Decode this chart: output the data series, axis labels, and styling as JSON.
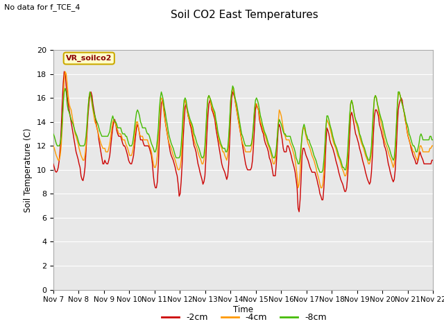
{
  "title": "Soil CO2 East Temperatures",
  "subtitle": "No data for f_TCE_4",
  "ylabel": "Soil Temperature (C)",
  "xlabel": "Time",
  "box_label": "VR_soilco2",
  "ylim": [
    0,
    20
  ],
  "legend_labels": [
    "-2cm",
    "-4cm",
    "-8cm"
  ],
  "legend_colors": [
    "#cc0000",
    "#ff9900",
    "#44bb00"
  ],
  "bg_color": "#ffffff",
  "plot_bg": "#e8e8e8",
  "x_tick_labels": [
    "Nov 7",
    "Nov 8",
    "Nov 9",
    "Nov 10",
    "Nov 11",
    "Nov 12",
    "Nov 13",
    "Nov 14",
    "Nov 15",
    "Nov 16",
    "Nov 17",
    "Nov 18",
    "Nov 19",
    "Nov 20",
    "Nov 21",
    "Nov 22"
  ],
  "yticks": [
    0,
    2,
    4,
    6,
    8,
    10,
    12,
    14,
    16,
    18,
    20
  ],
  "depth_2cm": [
    10.5,
    10.2,
    9.9,
    9.8,
    9.9,
    10.2,
    10.8,
    11.8,
    13.5,
    15.5,
    17.2,
    18.2,
    18.0,
    17.0,
    16.2,
    15.5,
    15.0,
    14.5,
    14.0,
    13.5,
    13.0,
    12.5,
    12.0,
    11.5,
    11.2,
    10.9,
    10.5,
    10.2,
    9.5,
    9.2,
    9.1,
    9.5,
    10.2,
    11.5,
    13.0,
    14.5,
    15.5,
    16.3,
    16.5,
    16.2,
    15.5,
    15.0,
    14.5,
    14.0,
    13.5,
    13.2,
    12.5,
    12.0,
    11.5,
    11.0,
    10.5,
    10.5,
    10.8,
    10.6,
    10.5,
    10.5,
    10.8,
    11.2,
    12.0,
    12.8,
    13.5,
    14.0,
    14.2,
    13.8,
    13.3,
    13.0,
    12.8,
    12.8,
    12.8,
    12.5,
    12.2,
    12.0,
    12.0,
    11.8,
    11.5,
    11.2,
    10.8,
    10.6,
    10.5,
    10.5,
    10.8,
    11.2,
    12.0,
    12.8,
    13.5,
    13.8,
    13.5,
    13.0,
    12.5,
    12.5,
    12.5,
    12.2,
    12.0,
    12.0,
    12.0,
    12.0,
    12.0,
    11.8,
    11.5,
    11.2,
    10.5,
    9.5,
    8.8,
    8.5,
    8.5,
    9.0,
    10.5,
    12.5,
    14.0,
    15.5,
    15.8,
    15.5,
    14.8,
    14.0,
    13.5,
    13.0,
    12.5,
    12.0,
    11.5,
    11.2,
    11.0,
    10.8,
    10.5,
    10.2,
    9.8,
    9.5,
    8.8,
    7.8,
    8.0,
    9.0,
    10.5,
    12.5,
    14.0,
    15.2,
    15.5,
    15.0,
    14.5,
    14.2,
    13.8,
    13.5,
    13.0,
    12.5,
    12.0,
    11.8,
    11.5,
    11.0,
    10.5,
    10.2,
    9.8,
    9.5,
    9.2,
    8.8,
    9.0,
    9.5,
    11.0,
    13.0,
    14.5,
    15.5,
    15.8,
    15.5,
    15.0,
    14.8,
    14.5,
    14.2,
    13.5,
    13.0,
    12.5,
    12.0,
    11.5,
    11.0,
    10.5,
    10.2,
    10.0,
    9.8,
    9.5,
    9.2,
    9.5,
    10.5,
    12.5,
    14.5,
    16.0,
    16.5,
    16.3,
    16.0,
    15.5,
    15.0,
    14.5,
    14.0,
    13.5,
    13.0,
    12.5,
    12.0,
    11.5,
    11.0,
    10.5,
    10.2,
    10.0,
    10.0,
    10.0,
    10.0,
    10.2,
    10.8,
    12.0,
    13.5,
    15.0,
    15.5,
    15.2,
    15.0,
    14.2,
    13.8,
    13.5,
    13.2,
    13.0,
    12.5,
    12.2,
    12.0,
    11.8,
    11.5,
    11.0,
    10.8,
    10.5,
    10.0,
    9.5,
    9.5,
    9.5,
    10.5,
    12.0,
    13.5,
    13.8,
    13.5,
    13.0,
    12.5,
    11.8,
    11.5,
    11.5,
    11.5,
    12.0,
    12.0,
    11.8,
    11.5,
    11.2,
    10.8,
    10.5,
    10.2,
    9.8,
    9.2,
    8.5,
    6.8,
    6.5,
    7.5,
    9.2,
    11.2,
    11.8,
    11.8,
    11.5,
    11.2,
    11.0,
    10.8,
    10.5,
    10.2,
    10.0,
    9.8,
    9.8,
    9.8,
    9.8,
    9.5,
    9.2,
    8.8,
    8.5,
    8.0,
    7.8,
    7.5,
    7.5,
    8.5,
    10.0,
    12.0,
    13.5,
    13.3,
    13.0,
    12.5,
    12.2,
    12.0,
    11.8,
    11.5,
    11.2,
    10.8,
    10.5,
    10.2,
    9.8,
    9.5,
    9.2,
    9.0,
    8.8,
    8.5,
    8.2,
    8.2,
    8.5,
    9.5,
    11.0,
    12.8,
    14.5,
    14.8,
    14.5,
    14.0,
    13.5,
    13.0,
    12.8,
    12.5,
    12.2,
    11.8,
    11.5,
    11.2,
    10.8,
    10.5,
    10.2,
    9.8,
    9.5,
    9.2,
    9.0,
    8.8,
    9.0,
    9.8,
    11.2,
    13.0,
    14.5,
    15.0,
    15.0,
    14.8,
    14.5,
    13.8,
    13.5,
    13.2,
    12.8,
    12.5,
    12.0,
    11.8,
    11.5,
    11.0,
    10.5,
    10.2,
    9.8,
    9.5,
    9.2,
    9.0,
    9.2,
    10.0,
    11.5,
    13.5,
    15.0,
    15.5,
    15.8,
    16.0,
    15.8,
    15.2,
    14.8,
    14.2,
    13.8,
    13.2,
    12.8,
    12.5,
    12.2,
    11.8,
    11.5,
    11.2,
    11.0,
    10.8,
    10.5,
    10.5,
    10.8,
    11.2,
    11.5,
    11.2,
    11.0,
    10.8,
    10.5,
    10.5,
    10.5,
    10.5,
    10.5,
    10.5,
    10.5,
    10.5,
    10.8,
    10.8
  ],
  "depth_4cm": [
    12.0,
    11.8,
    11.5,
    11.2,
    11.0,
    10.8,
    10.8,
    11.2,
    12.0,
    13.5,
    15.5,
    17.5,
    18.2,
    18.0,
    17.2,
    16.2,
    15.5,
    15.2,
    15.0,
    14.5,
    14.0,
    13.5,
    13.0,
    12.8,
    12.5,
    12.2,
    11.8,
    11.5,
    11.2,
    11.0,
    10.8,
    10.8,
    11.2,
    12.0,
    13.5,
    15.0,
    16.0,
    16.5,
    16.2,
    15.5,
    15.0,
    14.5,
    14.0,
    13.8,
    13.5,
    13.2,
    12.8,
    12.5,
    12.2,
    12.0,
    11.8,
    11.8,
    11.8,
    11.5,
    11.5,
    11.5,
    11.8,
    12.2,
    12.8,
    13.5,
    14.0,
    14.2,
    14.0,
    13.8,
    13.5,
    13.3,
    13.0,
    13.0,
    13.0,
    12.8,
    12.5,
    12.5,
    12.5,
    12.2,
    12.0,
    11.8,
    11.5,
    11.2,
    11.2,
    11.2,
    11.5,
    12.0,
    12.8,
    13.5,
    14.0,
    14.0,
    13.5,
    13.0,
    12.8,
    12.8,
    12.8,
    12.5,
    12.5,
    12.5,
    12.5,
    12.5,
    12.2,
    12.0,
    11.8,
    11.5,
    11.0,
    10.5,
    10.2,
    10.2,
    10.5,
    11.2,
    12.8,
    14.5,
    15.8,
    16.0,
    15.8,
    15.2,
    14.5,
    14.0,
    13.5,
    13.0,
    12.5,
    12.2,
    12.0,
    11.8,
    11.5,
    11.2,
    11.0,
    10.8,
    10.5,
    10.2,
    10.0,
    10.0,
    10.2,
    10.8,
    12.2,
    14.0,
    15.5,
    15.8,
    15.5,
    15.0,
    14.5,
    14.2,
    14.0,
    13.8,
    13.5,
    13.0,
    12.5,
    12.2,
    12.0,
    11.8,
    11.5,
    11.2,
    11.0,
    10.8,
    10.5,
    10.5,
    10.8,
    11.5,
    13.0,
    14.8,
    16.0,
    16.2,
    16.0,
    15.5,
    15.2,
    15.0,
    14.8,
    14.5,
    14.0,
    13.5,
    13.0,
    12.5,
    12.2,
    12.0,
    11.8,
    11.5,
    11.5,
    11.2,
    11.0,
    10.8,
    11.2,
    12.2,
    14.0,
    15.8,
    16.5,
    16.8,
    16.5,
    16.0,
    15.5,
    15.0,
    14.5,
    14.0,
    13.5,
    13.0,
    12.5,
    12.2,
    12.0,
    11.8,
    11.5,
    11.5,
    11.5,
    11.5,
    11.5,
    11.5,
    11.8,
    12.5,
    13.8,
    15.0,
    15.5,
    15.5,
    15.2,
    15.0,
    14.5,
    14.0,
    13.8,
    13.5,
    13.2,
    13.0,
    12.8,
    12.5,
    12.2,
    12.0,
    11.8,
    11.5,
    11.2,
    10.8,
    10.5,
    10.5,
    10.8,
    11.5,
    12.8,
    14.0,
    15.0,
    14.8,
    14.5,
    14.0,
    13.5,
    13.0,
    12.8,
    12.5,
    12.5,
    12.5,
    12.5,
    12.2,
    12.0,
    11.8,
    11.5,
    11.2,
    10.8,
    10.2,
    9.5,
    8.5,
    8.8,
    9.8,
    11.5,
    13.0,
    13.5,
    13.5,
    13.2,
    12.8,
    12.5,
    12.2,
    12.0,
    11.8,
    11.5,
    11.2,
    11.0,
    10.8,
    10.5,
    10.2,
    9.8,
    9.5,
    9.2,
    8.8,
    8.5,
    8.5,
    8.8,
    9.8,
    11.5,
    13.5,
    14.2,
    14.0,
    13.8,
    13.5,
    13.2,
    12.8,
    12.5,
    12.2,
    12.0,
    11.8,
    11.5,
    11.2,
    11.0,
    10.8,
    10.5,
    10.2,
    10.0,
    9.8,
    9.5,
    9.5,
    9.8,
    10.8,
    12.5,
    14.2,
    15.5,
    15.8,
    15.5,
    15.0,
    14.5,
    14.0,
    13.8,
    13.5,
    13.2,
    12.8,
    12.5,
    12.2,
    12.0,
    11.8,
    11.5,
    11.2,
    11.0,
    10.8,
    10.5,
    10.5,
    10.8,
    11.5,
    13.0,
    14.8,
    16.0,
    16.2,
    16.0,
    15.5,
    15.0,
    14.5,
    14.2,
    13.8,
    13.5,
    13.0,
    12.5,
    12.2,
    12.0,
    11.8,
    11.5,
    11.2,
    11.0,
    10.8,
    10.5,
    10.2,
    10.5,
    11.5,
    13.2,
    15.2,
    16.2,
    16.5,
    16.2,
    15.8,
    15.5,
    15.2,
    14.8,
    14.2,
    13.8,
    13.2,
    12.8,
    12.5,
    12.2,
    12.0,
    11.8,
    11.5,
    11.5,
    11.2,
    11.0,
    10.8,
    11.0,
    11.5,
    12.0,
    12.0,
    11.8,
    11.5,
    11.5,
    11.5,
    11.5,
    11.5,
    11.5,
    11.5,
    11.8,
    11.8,
    12.0,
    12.0
  ],
  "depth_8cm": [
    13.0,
    12.8,
    12.5,
    12.2,
    12.0,
    12.0,
    12.0,
    12.2,
    12.8,
    14.0,
    15.5,
    16.5,
    16.8,
    16.5,
    15.5,
    15.0,
    14.8,
    14.5,
    14.2,
    14.0,
    13.8,
    13.5,
    13.2,
    13.0,
    12.8,
    12.5,
    12.2,
    12.0,
    12.0,
    12.0,
    12.0,
    12.0,
    12.2,
    12.8,
    13.8,
    15.0,
    16.0,
    16.5,
    16.2,
    15.8,
    15.2,
    14.8,
    14.5,
    14.2,
    14.0,
    13.8,
    13.5,
    13.2,
    13.0,
    12.8,
    12.8,
    12.8,
    12.8,
    12.8,
    12.8,
    12.8,
    13.0,
    13.2,
    13.8,
    14.2,
    14.5,
    14.2,
    14.0,
    14.0,
    13.8,
    13.5,
    13.5,
    13.5,
    13.5,
    13.2,
    13.0,
    13.0,
    13.0,
    12.8,
    12.8,
    12.5,
    12.2,
    12.0,
    12.0,
    12.0,
    12.2,
    12.8,
    13.5,
    14.2,
    14.8,
    15.0,
    14.8,
    14.5,
    14.0,
    13.8,
    13.5,
    13.5,
    13.5,
    13.5,
    13.2,
    13.0,
    13.0,
    12.8,
    12.5,
    12.2,
    12.0,
    11.8,
    11.5,
    11.5,
    11.8,
    12.5,
    13.5,
    15.0,
    16.0,
    16.5,
    16.2,
    15.8,
    15.2,
    14.8,
    14.2,
    13.8,
    13.2,
    12.8,
    12.5,
    12.2,
    12.0,
    11.8,
    11.5,
    11.2,
    11.0,
    11.0,
    11.0,
    11.0,
    11.2,
    12.0,
    13.2,
    14.8,
    15.8,
    16.0,
    15.8,
    15.2,
    14.8,
    14.5,
    14.2,
    14.0,
    13.8,
    13.5,
    13.0,
    12.8,
    12.5,
    12.2,
    12.0,
    11.8,
    11.5,
    11.2,
    11.0,
    11.0,
    11.2,
    12.0,
    13.5,
    15.0,
    16.0,
    16.2,
    16.0,
    15.8,
    15.5,
    15.2,
    15.0,
    14.8,
    14.2,
    13.8,
    13.2,
    12.8,
    12.5,
    12.2,
    12.0,
    11.8,
    11.8,
    11.8,
    11.5,
    11.5,
    11.8,
    12.8,
    14.2,
    15.8,
    16.5,
    17.0,
    16.8,
    16.2,
    15.8,
    15.5,
    15.0,
    14.5,
    14.0,
    13.5,
    13.0,
    12.8,
    12.5,
    12.2,
    12.0,
    12.0,
    12.0,
    12.0,
    12.0,
    12.0,
    12.2,
    12.8,
    13.8,
    15.0,
    15.8,
    16.0,
    15.8,
    15.5,
    15.0,
    14.5,
    14.2,
    13.8,
    13.5,
    13.2,
    13.0,
    12.8,
    12.5,
    12.2,
    12.0,
    11.8,
    11.5,
    11.2,
    11.0,
    11.0,
    11.2,
    11.8,
    12.8,
    13.8,
    14.2,
    14.0,
    13.8,
    13.5,
    13.2,
    13.0,
    13.0,
    12.8,
    12.8,
    12.8,
    12.8,
    12.8,
    12.5,
    12.2,
    12.0,
    11.8,
    11.5,
    11.0,
    10.8,
    10.5,
    10.5,
    11.0,
    12.0,
    12.8,
    13.5,
    13.8,
    13.5,
    13.0,
    12.8,
    12.5,
    12.5,
    12.2,
    12.0,
    11.8,
    11.5,
    11.2,
    11.0,
    10.8,
    10.5,
    10.2,
    10.0,
    9.8,
    9.8,
    9.8,
    10.0,
    10.8,
    12.0,
    13.5,
    14.5,
    14.5,
    14.2,
    13.8,
    13.5,
    13.2,
    12.8,
    12.5,
    12.2,
    12.0,
    11.8,
    11.5,
    11.2,
    11.0,
    10.8,
    10.5,
    10.2,
    10.2,
    10.0,
    10.0,
    10.5,
    11.5,
    13.0,
    14.5,
    15.5,
    15.8,
    15.5,
    15.0,
    14.5,
    14.2,
    14.0,
    13.8,
    13.5,
    13.0,
    12.8,
    12.5,
    12.2,
    12.0,
    11.8,
    11.5,
    11.2,
    11.0,
    10.8,
    10.8,
    11.2,
    12.0,
    13.5,
    15.0,
    16.0,
    16.2,
    16.0,
    15.5,
    15.2,
    14.8,
    14.5,
    14.2,
    14.0,
    13.5,
    13.2,
    12.8,
    12.5,
    12.2,
    12.0,
    11.8,
    11.5,
    11.2,
    11.0,
    10.8,
    11.0,
    12.0,
    13.5,
    15.2,
    16.5,
    16.5,
    16.2,
    15.8,
    15.5,
    15.2,
    14.8,
    14.5,
    14.0,
    13.8,
    13.5,
    13.0,
    12.8,
    12.5,
    12.2,
    12.0,
    12.0,
    11.8,
    11.5,
    11.5,
    11.8,
    12.2,
    12.8,
    13.0,
    12.8,
    12.5,
    12.5,
    12.5,
    12.5,
    12.5,
    12.5,
    12.5,
    12.8,
    12.8,
    12.5,
    12.5
  ]
}
